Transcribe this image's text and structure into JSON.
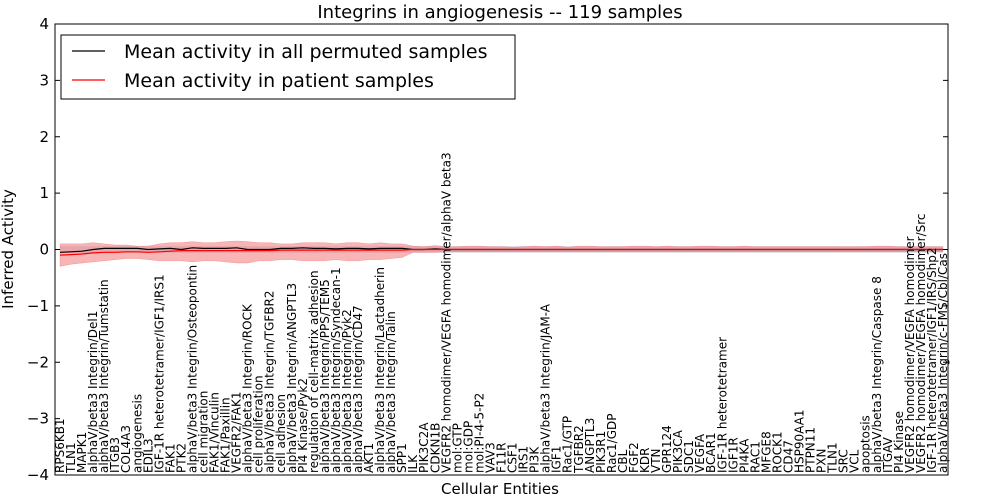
{
  "chart_data": {
    "type": "line",
    "title": "Integrins in angiogenesis -- 119 samples",
    "xlabel": "Cellular Entities",
    "ylabel": "Inferred Activity",
    "ylim": [
      -4,
      4
    ],
    "yticks": [
      "4",
      "3",
      "2",
      "1",
      "0",
      "−1",
      "−2",
      "−3",
      "−4"
    ],
    "ytick_values": [
      4,
      3,
      2,
      1,
      0,
      -1,
      -2,
      -3,
      -4
    ],
    "grid": false,
    "legend_position": "top-left",
    "categories": [
      "RPS6KB1",
      "TLN1",
      "MAPK1",
      "alphaV/beta3 Integrin/Del1",
      "alphaV/beta3 Integrin/Tumstatin",
      "ITGB3",
      "COL4A3",
      "angiogenesis",
      "EDIL3",
      "IGF-1R heterotetramer/IGF1/IRS1",
      "FAK1",
      "PTK2",
      "alphaV/beta3 Integrin/Osteopontin",
      "cell migration",
      "FAK1/Vinculin",
      "FAK1/Paxillin",
      "VEGFR2/FAK1",
      "alphaV/beta3 Integrin/ROCK",
      "cell proliferation",
      "alphaV/beta3 Integrin/TGFBR2",
      "cell adhesion",
      "alphaV/beta3 Integrin/ANGPTL3",
      "PI4 Kinase/Pyk2",
      "regulation of cell-matrix adhesion",
      "alphaV/beta3 Integrin/PPS/TEM5",
      "alphaV/beta3 Integrin/Syndecan-1",
      "alphaV/beta3 Integrin/Pyk2",
      "alphaV/beta3 Integrin/CD47",
      "AKT1",
      "alphaV/beta3 Integrin/Lactadherin",
      "alphaV/beta3 Integrin/Talin",
      "SPP1",
      "ILK",
      "PIK3C2A",
      "CDKN1B",
      "VEGFR2 homodimer/VEGFA homodimer/alphaV beta3",
      "mol:GTP",
      "mol:GDP",
      "mol:PI-4-5-P2",
      "VAV3",
      "F11R",
      "CSF1",
      "IRS1",
      "PI3K",
      "alphaV/beta3 Integrin/JAM-A",
      "IGF1",
      "Rac1/GTP",
      "TGFBR2",
      "ANGPTL3",
      "PIK3R1",
      "Rac1/GDP",
      "CBL",
      "FGF2",
      "KDR",
      "VTN",
      "GPR124",
      "PIK3CA",
      "SDC1",
      "VEGFA",
      "BCAR1",
      "IGF-1R heterotetramer",
      "IGF1R",
      "PI4KA",
      "RAC1",
      "MFGE8",
      "ROCK1",
      "CD47",
      "HSP90AA1",
      "PTPN11",
      "PXN",
      "TLN1",
      "SRC",
      "VCL",
      "apoptosis",
      "alphaV/beta3 Integrin/Caspase 8",
      "ITGAV",
      "PI4 Kinase",
      "VEGFR2 homodimer/VEGFA homodimer",
      "VEGFR2 homodimer/VEGFA homodimer/Src",
      "IGF-1R heterotetramer/IGF1/IRS/Shp2",
      "alphaV/beta3 Integrin/c-FMS/Cbl/Cas"
    ],
    "series": [
      {
        "name": "Mean activity in all permuted samples",
        "color": "#000000",
        "values": [
          -0.05,
          -0.04,
          -0.03,
          0.0,
          0.02,
          0.02,
          0.02,
          0.02,
          0.0,
          0.01,
          0.02,
          0.0,
          0.03,
          0.02,
          0.02,
          0.02,
          0.03,
          0.0,
          0.0,
          0.0,
          0.02,
          0.02,
          0.03,
          0.02,
          0.02,
          0.01,
          0.02,
          0.02,
          0.01,
          0.02,
          0.02,
          0.02,
          0.0,
          0.0,
          0.01,
          0.0,
          0.0,
          0.0,
          0.0,
          0.0,
          0.0,
          0.0,
          0.0,
          0.0,
          0.0,
          0.0,
          0.0,
          0.0,
          0.0,
          0.0,
          0.0,
          0.0,
          0.0,
          0.0,
          0.0,
          0.0,
          0.0,
          0.0,
          0.0,
          0.0,
          0.0,
          0.0,
          0.0,
          0.0,
          0.0,
          0.0,
          0.0,
          0.0,
          0.0,
          0.0,
          0.0,
          0.0,
          0.0,
          0.0,
          0.0,
          0.0,
          0.0,
          0.0,
          0.0,
          0.0,
          0.0
        ]
      },
      {
        "name": "Mean activity in patient samples",
        "color": "#ff0000",
        "values": [
          -0.1,
          -0.09,
          -0.08,
          -0.06,
          -0.05,
          -0.05,
          -0.04,
          -0.04,
          -0.05,
          -0.04,
          -0.03,
          -0.02,
          -0.02,
          -0.02,
          -0.02,
          -0.02,
          -0.02,
          -0.02,
          -0.02,
          -0.02,
          -0.01,
          -0.01,
          -0.01,
          -0.01,
          -0.01,
          -0.01,
          -0.01,
          -0.01,
          -0.01,
          -0.01,
          -0.01,
          -0.01,
          0.0,
          0.0,
          0.0,
          0.0,
          0.0,
          0.0,
          0.0,
          0.0,
          0.0,
          0.0,
          0.0,
          0.0,
          0.0,
          0.0,
          0.0,
          0.0,
          0.0,
          0.0,
          0.0,
          0.0,
          0.0,
          0.0,
          0.0,
          0.0,
          0.0,
          0.0,
          0.0,
          0.0,
          0.0,
          0.0,
          0.0,
          0.0,
          0.0,
          0.0,
          0.0,
          0.0,
          0.0,
          0.0,
          0.0,
          0.0,
          0.0,
          0.0,
          0.0,
          0.0,
          0.0,
          0.0,
          0.0,
          0.0,
          0.0
        ],
        "band_upper": [
          0.1,
          0.1,
          0.1,
          0.12,
          0.1,
          0.08,
          0.08,
          0.06,
          0.06,
          0.1,
          0.12,
          0.12,
          0.14,
          0.12,
          0.12,
          0.14,
          0.15,
          0.14,
          0.12,
          0.12,
          0.1,
          0.1,
          0.12,
          0.12,
          0.12,
          0.1,
          0.12,
          0.12,
          0.1,
          0.12,
          0.1,
          0.1,
          0.06,
          0.05,
          0.07,
          0.05,
          0.05,
          0.06,
          0.06,
          0.05,
          0.05,
          0.04,
          0.05,
          0.06,
          0.05,
          0.06,
          0.04,
          0.06,
          0.06,
          0.05,
          0.05,
          0.05,
          0.06,
          0.06,
          0.05,
          0.06,
          0.05,
          0.05,
          0.06,
          0.06,
          0.05,
          0.05,
          0.06,
          0.05,
          0.05,
          0.05,
          0.05,
          0.05,
          0.05,
          0.05,
          0.05,
          0.05,
          0.05,
          0.05,
          0.06,
          0.06,
          0.05,
          0.05,
          0.05,
          0.05,
          0.05
        ],
        "band_lower": [
          -0.3,
          -0.26,
          -0.24,
          -0.22,
          -0.2,
          -0.18,
          -0.16,
          -0.16,
          -0.18,
          -0.2,
          -0.2,
          -0.2,
          -0.22,
          -0.2,
          -0.2,
          -0.22,
          -0.24,
          -0.24,
          -0.2,
          -0.2,
          -0.18,
          -0.18,
          -0.2,
          -0.2,
          -0.2,
          -0.18,
          -0.2,
          -0.2,
          -0.18,
          -0.18,
          -0.16,
          -0.14,
          -0.05,
          -0.05,
          -0.05,
          -0.04,
          -0.04,
          -0.04,
          -0.04,
          -0.04,
          -0.04,
          -0.04,
          -0.04,
          -0.04,
          -0.04,
          -0.04,
          -0.04,
          -0.04,
          -0.04,
          -0.04,
          -0.04,
          -0.04,
          -0.04,
          -0.04,
          -0.04,
          -0.04,
          -0.04,
          -0.04,
          -0.04,
          -0.04,
          -0.04,
          -0.04,
          -0.04,
          -0.04,
          -0.04,
          -0.04,
          -0.04,
          -0.04,
          -0.04,
          -0.04,
          -0.04,
          -0.04,
          -0.04,
          -0.04,
          -0.04,
          -0.04,
          -0.04,
          -0.04,
          -0.04,
          -0.04,
          -0.04
        ]
      }
    ]
  }
}
